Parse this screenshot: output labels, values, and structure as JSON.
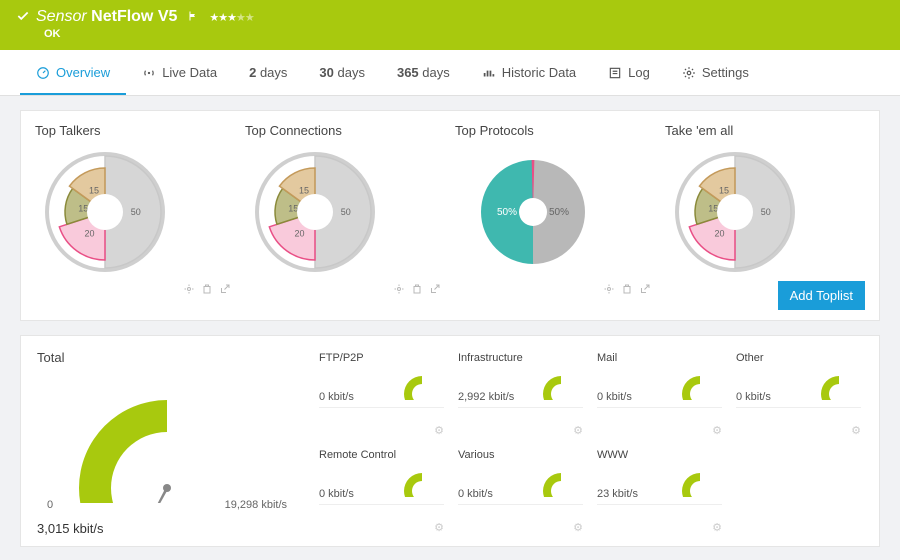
{
  "colors": {
    "brand_green": "#a8c90e",
    "accent_blue": "#1a9dd9",
    "gray_ring": "#cfcfcf",
    "gray_slice": "#c8c8c8",
    "teal": "#3fb8af",
    "pink": "#e94f86",
    "olive": "#8a8a3a",
    "tan": "#c49a5b",
    "pink_fill": "#f7b8cf",
    "tan_fill": "#d9b77f",
    "olive_fill": "#a8a860",
    "label_gray": "#888"
  },
  "header": {
    "prefix": "Sensor",
    "name": "NetFlow V5",
    "status": "OK",
    "stars_filled": 3,
    "stars_total": 5
  },
  "tabs": [
    {
      "id": "overview",
      "label": "Overview",
      "icon": "gauge",
      "active": true
    },
    {
      "id": "live",
      "label": "Live Data",
      "icon": "live",
      "active": false
    },
    {
      "id": "2d",
      "label": "2 days",
      "icon": "none",
      "bold_num": "2",
      "suffix": " days",
      "active": false
    },
    {
      "id": "30d",
      "label": "30 days",
      "icon": "none",
      "bold_num": "30",
      "suffix": " days",
      "active": false
    },
    {
      "id": "365d",
      "label": "365 days",
      "icon": "none",
      "bold_num": "365",
      "suffix": " days",
      "active": false
    },
    {
      "id": "historic",
      "label": "Historic Data",
      "icon": "historic",
      "active": false
    },
    {
      "id": "log",
      "label": "Log",
      "icon": "log",
      "active": false
    },
    {
      "id": "settings",
      "label": "Settings",
      "icon": "gear",
      "active": false
    }
  ],
  "toplists": {
    "add_button": "Add Toplist",
    "cards": [
      {
        "title": "Top Talkers",
        "type": "petal-donut",
        "slices": [
          {
            "label": "50",
            "value": 50,
            "color": "#c8c8c8",
            "radius": 56
          },
          {
            "label": "20",
            "value": 20,
            "color": "#f7b8cf",
            "stroke": "#e94f86",
            "radius": 48
          },
          {
            "label": "15",
            "value": 15,
            "color": "#a8a860",
            "stroke": "#8a8a3a",
            "radius": 40
          },
          {
            "label": "15",
            "value": 15,
            "color": "#d9b77f",
            "stroke": "#c49a5b",
            "radius": 44
          }
        ],
        "ring_color": "#cfcfcf",
        "center": "#ffffff"
      },
      {
        "title": "Top Connections",
        "type": "petal-donut",
        "slices": [
          {
            "label": "50",
            "value": 50,
            "color": "#c8c8c8",
            "radius": 56
          },
          {
            "label": "20",
            "value": 20,
            "color": "#f7b8cf",
            "stroke": "#e94f86",
            "radius": 48
          },
          {
            "label": "15",
            "value": 15,
            "color": "#a8a860",
            "stroke": "#8a8a3a",
            "radius": 40
          },
          {
            "label": "15",
            "value": 15,
            "color": "#d9b77f",
            "stroke": "#c49a5b",
            "radius": 44
          }
        ]
      },
      {
        "title": "Top Protocols",
        "type": "two-donut",
        "left": {
          "label": "50%",
          "value": 50,
          "color": "#3fb8af"
        },
        "right": {
          "label": "50%",
          "value": 50,
          "color": "#b8b8b8"
        },
        "separator_color": "#e94f86"
      },
      {
        "title": "Take 'em all",
        "type": "petal-donut",
        "slices": [
          {
            "label": "50",
            "value": 50,
            "color": "#c8c8c8",
            "radius": 56
          },
          {
            "label": "20",
            "value": 20,
            "color": "#f7b8cf",
            "stroke": "#e94f86",
            "radius": 48
          },
          {
            "label": "15",
            "value": 15,
            "color": "#a8a860",
            "stroke": "#8a8a3a",
            "radius": 40
          },
          {
            "label": "15",
            "value": 15,
            "color": "#d9b77f",
            "stroke": "#c49a5b",
            "radius": 44
          }
        ]
      }
    ]
  },
  "gauges": {
    "total": {
      "title": "Total",
      "value_label": "3,015 kbit/s",
      "value": 3015,
      "min_label": "0",
      "max_label": "19,298 kbit/s",
      "min": 0,
      "max": 19298,
      "arc_color": "#a8c90e",
      "needle_color": "#888"
    },
    "items": [
      {
        "title": "FTP/P2P",
        "value_label": "0 kbit/s",
        "value": 0
      },
      {
        "title": "Infrastructure",
        "value_label": "2,992 kbit/s",
        "value": 2992
      },
      {
        "title": "Mail",
        "value_label": "0 kbit/s",
        "value": 0
      },
      {
        "title": "Other",
        "value_label": "0 kbit/s",
        "value": 0
      },
      {
        "title": "Remote Control",
        "value_label": "0 kbit/s",
        "value": 0
      },
      {
        "title": "Various",
        "value_label": "0 kbit/s",
        "value": 0
      },
      {
        "title": "WWW",
        "value_label": "23 kbit/s",
        "value": 23
      }
    ],
    "small_arc_color": "#a8c90e"
  }
}
